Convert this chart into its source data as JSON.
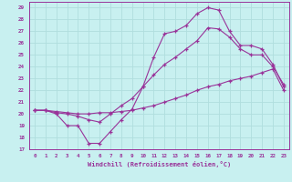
{
  "xlabel": "Windchill (Refroidissement éolien,°C)",
  "bg_color": "#c8f0f0",
  "grid_color": "#b0dede",
  "line_color": "#993399",
  "xlim": [
    -0.5,
    23.5
  ],
  "ylim": [
    17,
    29.5
  ],
  "xticks": [
    0,
    1,
    2,
    3,
    4,
    5,
    6,
    7,
    8,
    9,
    10,
    11,
    12,
    13,
    14,
    15,
    16,
    17,
    18,
    19,
    20,
    21,
    22,
    23
  ],
  "yticks": [
    17,
    18,
    19,
    20,
    21,
    22,
    23,
    24,
    25,
    26,
    27,
    28,
    29
  ],
  "curve1_x": [
    0,
    1,
    2,
    3,
    4,
    5,
    6,
    7,
    8,
    9,
    10,
    11,
    12,
    13,
    14,
    15,
    16,
    17,
    18,
    19,
    20,
    21,
    22,
    23
  ],
  "curve1_y": [
    20.3,
    20.3,
    20.0,
    19.0,
    19.0,
    17.5,
    17.5,
    18.5,
    19.5,
    20.4,
    22.3,
    24.8,
    26.8,
    27.0,
    27.5,
    28.5,
    29.0,
    28.8,
    27.0,
    25.8,
    25.8,
    25.5,
    24.2,
    22.3
  ],
  "curve2_x": [
    0,
    1,
    2,
    3,
    4,
    5,
    6,
    7,
    8,
    9,
    10,
    11,
    12,
    13,
    14,
    15,
    16,
    17,
    18,
    19,
    20,
    21,
    22,
    23
  ],
  "curve2_y": [
    20.3,
    20.3,
    20.1,
    20.0,
    19.8,
    19.5,
    19.3,
    20.0,
    20.7,
    21.3,
    22.3,
    23.3,
    24.2,
    24.8,
    25.5,
    26.2,
    27.3,
    27.2,
    26.5,
    25.5,
    25.0,
    25.0,
    24.0,
    22.5
  ],
  "curve3_x": [
    0,
    1,
    2,
    3,
    4,
    5,
    6,
    7,
    8,
    9,
    10,
    11,
    12,
    13,
    14,
    15,
    16,
    17,
    18,
    19,
    20,
    21,
    22,
    23
  ],
  "curve3_y": [
    20.3,
    20.3,
    20.2,
    20.1,
    20.0,
    20.0,
    20.1,
    20.1,
    20.2,
    20.3,
    20.5,
    20.7,
    21.0,
    21.3,
    21.6,
    22.0,
    22.3,
    22.5,
    22.8,
    23.0,
    23.2,
    23.5,
    23.8,
    22.0
  ]
}
